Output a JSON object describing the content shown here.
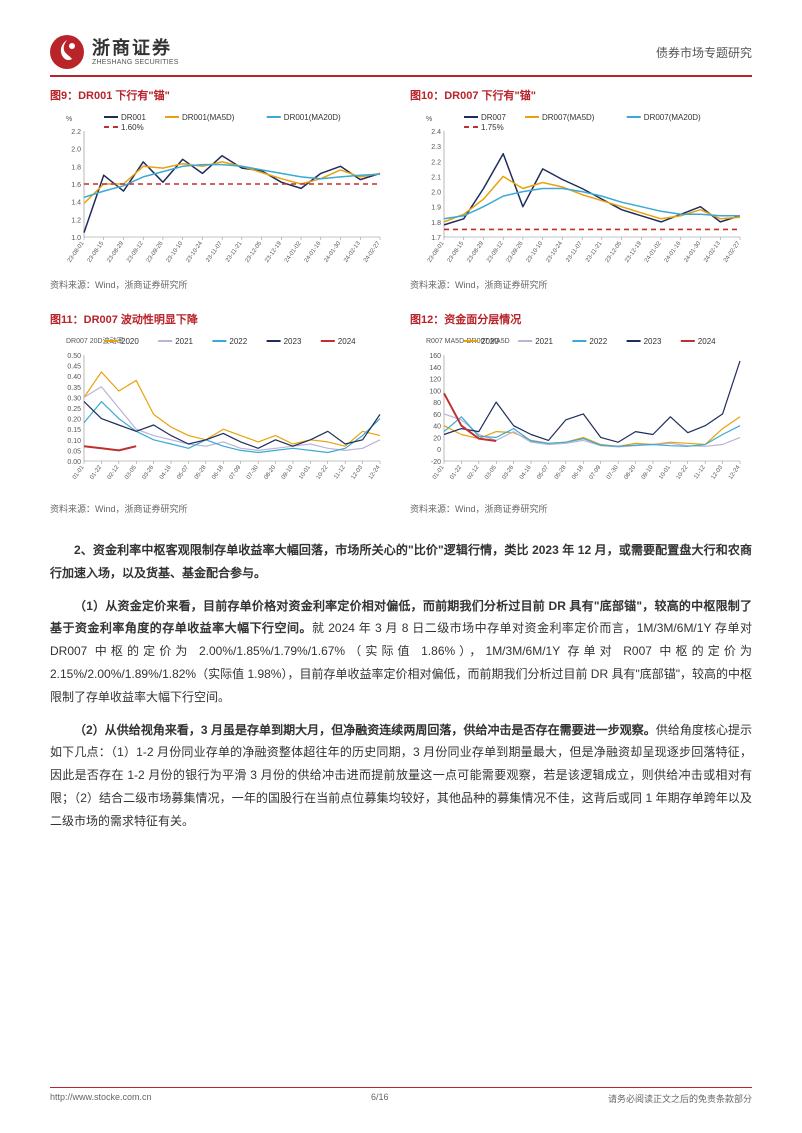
{
  "header": {
    "brand_cn": "浙商证券",
    "brand_en": "ZHESHANG SECURITIES",
    "doc_title": "债券市场专题研究"
  },
  "charts": {
    "c9": {
      "title": "图9：DR001 下行有\"锚\"",
      "source": "资料来源：Wind，浙商证券研究所",
      "type": "line",
      "y_unit": "%",
      "ylim": [
        1.0,
        2.2
      ],
      "ytick_step": 0.2,
      "x_labels": [
        "23-08-01",
        "23-08-15",
        "23-08-29",
        "23-09-12",
        "23-09-26",
        "23-10-10",
        "23-10-24",
        "23-11-07",
        "23-11-21",
        "23-12-05",
        "23-12-19",
        "24-01-02",
        "24-01-16",
        "24-01-30",
        "24-02-13",
        "24-02-27"
      ],
      "series": [
        {
          "name": "DR001",
          "color": "#1f2d5c",
          "width": 1.5,
          "data": [
            1.05,
            1.7,
            1.52,
            1.85,
            1.62,
            1.88,
            1.72,
            1.92,
            1.78,
            1.75,
            1.62,
            1.55,
            1.72,
            1.8,
            1.65,
            1.72
          ]
        },
        {
          "name": "DR001(MA5D)",
          "color": "#e8a20b",
          "width": 1.5,
          "data": [
            1.38,
            1.6,
            1.6,
            1.8,
            1.78,
            1.83,
            1.8,
            1.85,
            1.8,
            1.73,
            1.66,
            1.6,
            1.66,
            1.76,
            1.68,
            1.72
          ]
        },
        {
          "name": "DR001(MA20D)",
          "color": "#3aa9d6",
          "width": 1.5,
          "data": [
            1.45,
            1.52,
            1.58,
            1.68,
            1.74,
            1.8,
            1.82,
            1.82,
            1.8,
            1.76,
            1.72,
            1.68,
            1.66,
            1.68,
            1.7,
            1.71
          ]
        },
        {
          "name": "1.60%",
          "color": "#c03030",
          "width": 1.6,
          "dash": "5,4",
          "data": [
            1.6,
            1.6,
            1.6,
            1.6,
            1.6,
            1.6,
            1.6,
            1.6,
            1.6,
            1.6,
            1.6,
            1.6,
            1.6,
            1.6,
            1.6,
            1.6
          ]
        }
      ],
      "legend_fontsize": 8,
      "axis_fontsize": 7,
      "title_fontsize": 11,
      "background": "#ffffff"
    },
    "c10": {
      "title": "图10：DR007 下行有\"锚\"",
      "source": "资料来源：Wind，浙商证券研究所",
      "type": "line",
      "y_unit": "%",
      "ylim": [
        1.7,
        2.4
      ],
      "ytick_step": 0.1,
      "x_labels": [
        "23-08-01",
        "23-08-15",
        "23-08-29",
        "23-09-12",
        "23-09-26",
        "23-10-10",
        "23-10-24",
        "23-11-07",
        "23-11-21",
        "23-12-05",
        "23-12-19",
        "24-01-02",
        "24-01-16",
        "24-01-30",
        "24-02-13",
        "24-02-27"
      ],
      "series": [
        {
          "name": "DR007",
          "color": "#1f2d5c",
          "width": 1.5,
          "data": [
            1.78,
            1.82,
            2.02,
            2.25,
            1.9,
            2.15,
            2.08,
            2.02,
            1.95,
            1.88,
            1.84,
            1.8,
            1.85,
            1.9,
            1.8,
            1.84
          ]
        },
        {
          "name": "DR007(MA5D)",
          "color": "#e8a20b",
          "width": 1.5,
          "data": [
            1.8,
            1.85,
            1.95,
            2.1,
            2.02,
            2.06,
            2.03,
            1.98,
            1.94,
            1.9,
            1.86,
            1.82,
            1.84,
            1.88,
            1.82,
            1.83
          ]
        },
        {
          "name": "DR007(MA20D)",
          "color": "#3aa9d6",
          "width": 1.5,
          "data": [
            1.82,
            1.84,
            1.9,
            1.97,
            2.0,
            2.02,
            2.02,
            2.0,
            1.97,
            1.93,
            1.9,
            1.87,
            1.85,
            1.85,
            1.84,
            1.84
          ]
        },
        {
          "name": "1.75%",
          "color": "#c03030",
          "width": 1.6,
          "dash": "5,4",
          "data": [
            1.75,
            1.75,
            1.75,
            1.75,
            1.75,
            1.75,
            1.75,
            1.75,
            1.75,
            1.75,
            1.75,
            1.75,
            1.75,
            1.75,
            1.75,
            1.75
          ]
        }
      ],
      "legend_fontsize": 8,
      "axis_fontsize": 7,
      "title_fontsize": 11,
      "background": "#ffffff"
    },
    "c11": {
      "title": "图11：DR007 波动性明显下降",
      "source": "资料来源：Wind，浙商证券研究所",
      "type": "line",
      "sub_title": "DR007 20D波动率",
      "ylim": [
        0.0,
        0.5
      ],
      "ytick_step": 0.05,
      "x_labels": [
        "01-01",
        "01-22",
        "02-12",
        "03-05",
        "03-26",
        "04-16",
        "05-07",
        "05-28",
        "06-18",
        "07-09",
        "07-30",
        "08-20",
        "09-10",
        "10-01",
        "10-22",
        "11-12",
        "12-03",
        "12-24"
      ],
      "series": [
        {
          "name": "2020",
          "color": "#e8a20b",
          "width": 1.2,
          "data": [
            0.3,
            0.42,
            0.33,
            0.38,
            0.22,
            0.16,
            0.12,
            0.1,
            0.15,
            0.12,
            0.09,
            0.12,
            0.08,
            0.1,
            0.09,
            0.07,
            0.14,
            0.12
          ]
        },
        {
          "name": "2021",
          "color": "#b8b4d6",
          "width": 1.2,
          "data": [
            0.3,
            0.35,
            0.25,
            0.15,
            0.12,
            0.1,
            0.08,
            0.07,
            0.09,
            0.06,
            0.05,
            0.06,
            0.07,
            0.08,
            0.06,
            0.05,
            0.06,
            0.1
          ]
        },
        {
          "name": "2022",
          "color": "#3aa9d6",
          "width": 1.2,
          "data": [
            0.18,
            0.28,
            0.2,
            0.14,
            0.1,
            0.08,
            0.06,
            0.1,
            0.07,
            0.05,
            0.04,
            0.05,
            0.06,
            0.05,
            0.04,
            0.06,
            0.12,
            0.2
          ]
        },
        {
          "name": "2023",
          "color": "#1f2d5c",
          "width": 1.2,
          "data": [
            0.28,
            0.2,
            0.17,
            0.14,
            0.17,
            0.12,
            0.08,
            0.1,
            0.13,
            0.09,
            0.06,
            0.1,
            0.07,
            0.1,
            0.14,
            0.08,
            0.1,
            0.22
          ]
        },
        {
          "name": "2024",
          "color": "#c03030",
          "width": 2.0,
          "data": [
            0.07,
            0.06,
            0.05,
            0.07,
            null,
            null,
            null,
            null,
            null,
            null,
            null,
            null,
            null,
            null,
            null,
            null,
            null,
            null
          ]
        }
      ],
      "legend_fontsize": 8,
      "axis_fontsize": 7,
      "title_fontsize": 11,
      "background": "#ffffff"
    },
    "c12": {
      "title": "图12：资金面分层情况",
      "source": "资料来源：Wind，浙商证券研究所",
      "type": "line",
      "sub_title": "R007 MA5D-DR007 MA5D",
      "ylim": [
        -20,
        160
      ],
      "ytick_step": 20,
      "x_labels": [
        "01-01",
        "01-22",
        "02-12",
        "03-05",
        "03-26",
        "04-16",
        "05-07",
        "05-28",
        "06-18",
        "07-09",
        "07-30",
        "08-20",
        "09-10",
        "10-01",
        "10-22",
        "11-12",
        "12-03",
        "12-24"
      ],
      "series": [
        {
          "name": "2020",
          "color": "#e8a20b",
          "width": 1.2,
          "data": [
            40,
            25,
            18,
            30,
            28,
            15,
            10,
            12,
            20,
            8,
            5,
            10,
            8,
            12,
            10,
            8,
            35,
            55
          ]
        },
        {
          "name": "2021",
          "color": "#b8b4d6",
          "width": 1.2,
          "data": [
            60,
            50,
            25,
            15,
            30,
            12,
            8,
            10,
            15,
            6,
            4,
            6,
            8,
            10,
            6,
            5,
            8,
            20
          ]
        },
        {
          "name": "2022",
          "color": "#3aa9d6",
          "width": 1.2,
          "data": [
            30,
            55,
            22,
            20,
            35,
            14,
            10,
            12,
            18,
            7,
            5,
            7,
            8,
            6,
            5,
            8,
            25,
            40
          ]
        },
        {
          "name": "2023",
          "color": "#1f2d5c",
          "width": 1.2,
          "data": [
            25,
            35,
            30,
            80,
            40,
            25,
            15,
            50,
            60,
            20,
            12,
            30,
            25,
            55,
            28,
            40,
            60,
            150
          ]
        },
        {
          "name": "2024",
          "color": "#c03030",
          "width": 2.0,
          "data": [
            95,
            40,
            18,
            14,
            null,
            null,
            null,
            null,
            null,
            null,
            null,
            null,
            null,
            null,
            null,
            null,
            null,
            null
          ]
        }
      ],
      "legend_fontsize": 8,
      "axis_fontsize": 7,
      "title_fontsize": 11,
      "background": "#ffffff"
    }
  },
  "body": {
    "p1_bold": "2、资金利率中枢客观限制存单收益率大幅回落，市场所关心的\"比价\"逻辑行情，类比 2023 年 12 月，或需要配置盘大行和农商行加速入场，以及货基、基金配合参与。",
    "p2_bold": "（1）从资金定价来看，目前存单价格对资金利率定价相对偏低，而前期我们分析过目前 DR 具有\"底部锚\"，较高的中枢限制了基于资金利率角度的存单收益率大幅下行空间。",
    "p2_rest": "就 2024 年 3 月 8 日二级市场中存单对资金利率定价而言，1M/3M/6M/1Y 存单对 DR007 中枢的定价为 2.00%/1.85%/1.79%/1.67%（实际值 1.86%），1M/3M/6M/1Y 存单对 R007 中枢的定价为 2.15%/2.00%/1.89%/1.82%（实际值 1.98%），目前存单收益率定价相对偏低，而前期我们分析过目前 DR 具有\"底部锚\"，较高的中枢限制了存单收益率大幅下行空间。",
    "p3_bold": "（2）从供给视角来看，3 月虽是存单到期大月，但净融资连续两周回落，供给冲击是否存在需要进一步观察。",
    "p3_rest": "供给角度核心提示如下几点：（1）1-2 月份同业存单的净融资整体超往年的历史同期，3 月份同业存单到期量最大，但是净融资却呈现逐步回落特征，因此是否存在 1-2 月份的银行为平滑 3 月份的供给冲击进而提前放量这一点可能需要观察，若是该逻辑成立，则供给冲击或相对有限；（2）结合二级市场募集情况，一年的国股行在当前点位募集均较好，其他品种的募集情况不佳，这背后或同 1 年期存单跨年以及二级市场的需求特征有关。"
  },
  "footer": {
    "url": "http://www.stocke.com.cn",
    "page": "6/16",
    "disclaimer": "请务必阅读正文之后的免责条款部分"
  }
}
